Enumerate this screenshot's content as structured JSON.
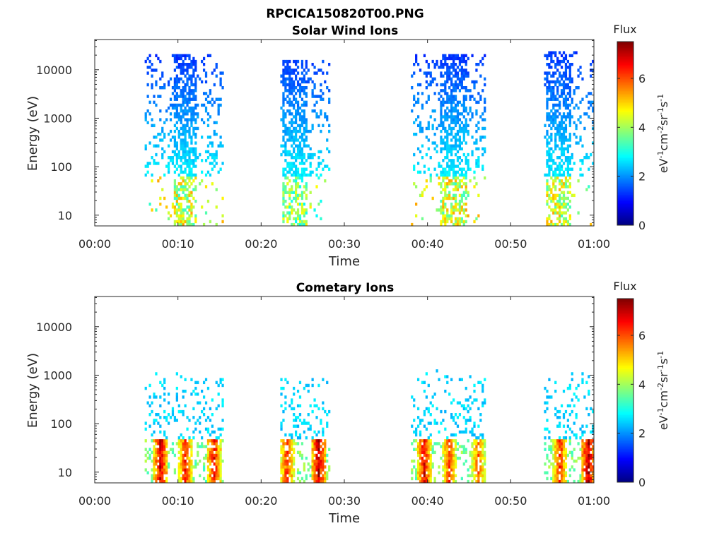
{
  "figure_title": "RPCICA150820T00.PNG",
  "colorbar": {
    "title": "Flux",
    "unit_base": "eV",
    "unit_exp1": "-1",
    "unit_cm": "cm",
    "unit_exp2": "-2",
    "unit_sr": "sr",
    "unit_exp3": "-1",
    "unit_s": "s",
    "unit_exp4": "-1",
    "ticks": [
      "0",
      "2",
      "4",
      "6"
    ],
    "range": [
      0,
      7.5
    ],
    "colormap": "jet"
  },
  "chart_data": [
    {
      "type": "heatmap",
      "title": "Solar Wind Ions",
      "xlabel": "Time",
      "ylabel": "Energy (eV)",
      "x_unit": "minutes after 00:00",
      "xlim": [
        0,
        60
      ],
      "ylim": [
        6,
        42000
      ],
      "yscale": "log",
      "xticks": [
        "00:00",
        "00:10",
        "00:20",
        "00:30",
        "00:40",
        "00:50",
        "01:00"
      ],
      "yticks": [
        "10",
        "100",
        "1000",
        "10000"
      ],
      "ytick_values": [
        10,
        100,
        1000,
        10000
      ],
      "bursts": [
        {
          "start": 6.0,
          "end": 15.5,
          "core_start": 9.3,
          "core_end": 12.2,
          "e_max": 22000,
          "low_flux": 4.5
        },
        {
          "start": 22.3,
          "end": 28.2,
          "core_start": 22.5,
          "core_end": 25.3,
          "e_max": 15000,
          "low_flux": 4.0
        },
        {
          "start": 38.0,
          "end": 47.0,
          "core_start": 41.5,
          "core_end": 44.5,
          "e_max": 21000,
          "low_flux": 4.5
        },
        {
          "start": 54.0,
          "end": 60.0,
          "core_start": 54.2,
          "core_end": 57.0,
          "e_max": 24000,
          "low_flux": 4.5
        }
      ]
    },
    {
      "type": "heatmap",
      "title": "Cometary Ions",
      "xlabel": "Time",
      "ylabel": "Energy (eV)",
      "x_unit": "minutes after 00:00",
      "xlim": [
        0,
        60
      ],
      "ylim": [
        6,
        42000
      ],
      "yscale": "log",
      "xticks": [
        "00:00",
        "00:10",
        "00:20",
        "00:30",
        "00:40",
        "00:50",
        "01:00"
      ],
      "yticks": [
        "10",
        "100",
        "1000",
        "10000"
      ],
      "ytick_values": [
        10,
        100,
        1000,
        10000
      ],
      "bursts": [
        {
          "start": 6.0,
          "end": 15.5,
          "core_start": 9.3,
          "core_end": 12.2,
          "e_max": 1200,
          "peaks": [
            {
              "t": 7.8,
              "f": 7.2
            },
            {
              "t": 10.8,
              "f": 6.6
            },
            {
              "t": 14.2,
              "f": 6.9
            }
          ]
        },
        {
          "start": 22.3,
          "end": 28.2,
          "core_start": 22.5,
          "core_end": 25.3,
          "e_max": 900,
          "peaks": [
            {
              "t": 23.0,
              "f": 6.5
            },
            {
              "t": 26.8,
              "f": 7.3
            }
          ]
        },
        {
          "start": 38.0,
          "end": 47.0,
          "core_start": 41.5,
          "core_end": 44.5,
          "e_max": 1600,
          "peaks": [
            {
              "t": 39.5,
              "f": 6.9
            },
            {
              "t": 42.5,
              "f": 6.3
            },
            {
              "t": 46.0,
              "f": 6.1
            }
          ]
        },
        {
          "start": 54.0,
          "end": 60.0,
          "core_start": 54.2,
          "core_end": 57.0,
          "e_max": 1200,
          "peaks": [
            {
              "t": 55.8,
              "f": 6.5
            },
            {
              "t": 59.2,
              "f": 7.4
            }
          ]
        }
      ]
    }
  ]
}
